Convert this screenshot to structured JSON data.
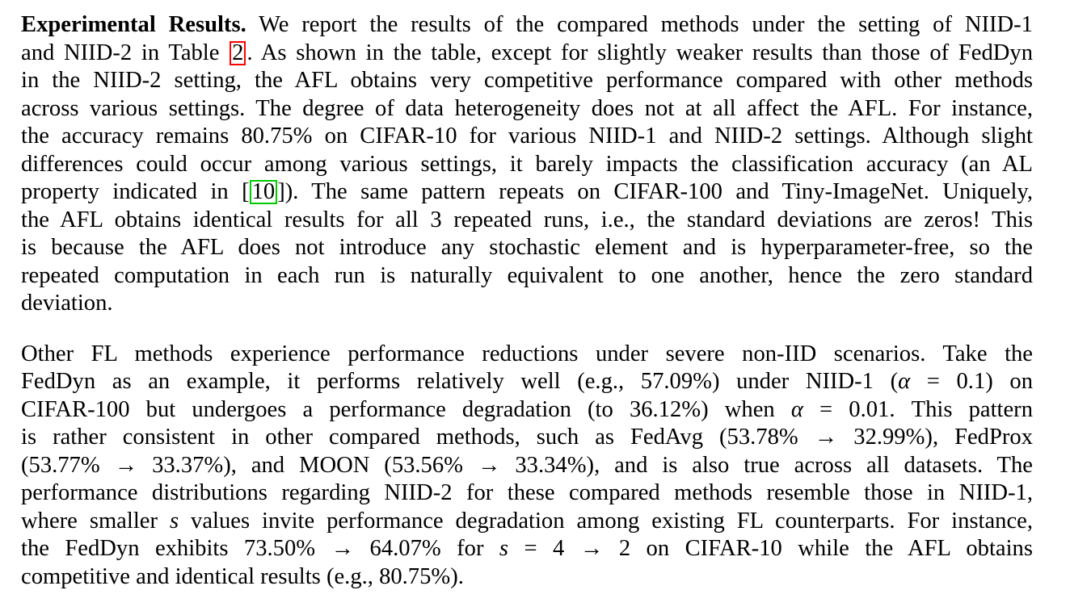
{
  "paragraph1": {
    "heading": "Experimental Results.",
    "l1_rest": " We report the results of the compared methods under the setting of NIID-1",
    "l2_pre": "and NIID-2 in Table ",
    "table_ref": "2",
    "l2_post": ". As shown in the table, except for slightly weaker results than those of FedDyn",
    "l3": "in the NIID-2 setting, the AFL obtains very competitive performance compared with other methods",
    "l4": "across various settings. The degree of data heterogeneity does not at all affect the AFL. For instance,",
    "l5": "the accuracy remains 80.75% on CIFAR-10 for various NIID-1 and NIID-2 settings. Although slight",
    "l6": "differences could occur among various settings, it barely impacts the classification accuracy (an AL",
    "l7_pre": "property indicated in [",
    "cite_ref": "10",
    "l7_post": "]). The same pattern repeats on CIFAR-100 and Tiny-ImageNet. Uniquely,",
    "l8": "the AFL obtains identical results for all 3 repeated runs, i.e., the standard deviations are zeros! This",
    "l9": "is because the AFL does not introduce any stochastic element and is hyperparameter-free, so the",
    "l10": "repeated computation in each run is naturally equivalent to one another, hence the zero standard",
    "l11": "deviation."
  },
  "paragraph2": {
    "l1": "Other FL methods experience performance reductions under severe non-IID scenarios. Take the",
    "l2_pre": "FedDyn as an example, it performs relatively well (e.g., 57.09%) under NIID-1 (",
    "l2_alpha": "α",
    "l2_eq": " = 0.1",
    "l2_post": ") on",
    "l3_pre": "CIFAR-100 but undergoes a performance degradation (to 36.12%) when ",
    "l3_alpha": "α",
    "l3_eq": " = 0.01",
    "l3_post": ". This pattern",
    "l4": "is rather consistent in other compared methods, such as FedAvg (53.78% → 32.99%), FedProx",
    "l5": "(53.77% → 33.37%), and MOON (53.56% → 33.34%), and is also true across all datasets. The",
    "l6": "performance distributions regarding NIID-2 for these compared methods resemble those in NIID-1,",
    "l7_pre": "where smaller ",
    "l7_s": "s",
    "l7_post": " values invite performance degradation among existing FL counterparts. For instance,",
    "l8_pre": "the FedDyn exhibits 73.50% → 64.07% for ",
    "l8_s": "s",
    "l8_post": " = 4 → 2 on CIFAR-10 while the AFL obtains",
    "l9": "competitive and identical results (e.g., 80.75%)."
  }
}
